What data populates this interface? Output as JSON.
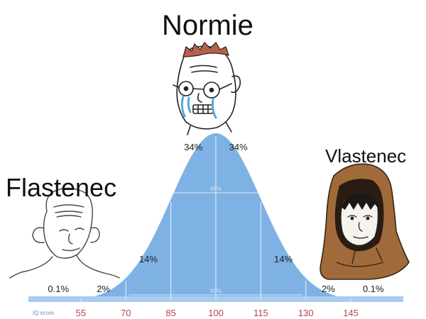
{
  "meme": {
    "top_label": "Normie",
    "left_label": "Flastenec",
    "right_label": "Vlastenec"
  },
  "bell_curve": {
    "type": "normal-distribution",
    "mean": 100,
    "sd": 15,
    "axis_label": "IQ score",
    "ticks": [
      "55",
      "70",
      "85",
      "100",
      "115",
      "130",
      "145"
    ],
    "percent_labels": [
      {
        "text": "0.1%",
        "x": 47.5
      },
      {
        "text": "2%",
        "x": 62.5
      },
      {
        "text": "14%",
        "x": 77.5
      },
      {
        "text": "34%",
        "x": 92.5
      },
      {
        "text": "34%",
        "x": 107.5
      },
      {
        "text": "14%",
        "x": 122.5
      },
      {
        "text": "2%",
        "x": 137.5
      },
      {
        "text": "0.1%",
        "x": 152.5
      }
    ],
    "inner_labels": [
      {
        "text": "68%"
      },
      {
        "text": "95%"
      }
    ],
    "colors": {
      "fill": "#7eb2e4",
      "fill_light": "#a8cdf0",
      "grid": "#dbe9f7",
      "tick_text": "#b04848",
      "axis_label": "#6a8fc4",
      "percent_text": "#222222"
    }
  },
  "characters": [
    {
      "name": "normie-wojak",
      "icon": "crying-glasses-face"
    },
    {
      "name": "flastenec-wojak",
      "icon": "bald-face"
    },
    {
      "name": "vlastenec-wojak",
      "icon": "hooded-face"
    }
  ]
}
